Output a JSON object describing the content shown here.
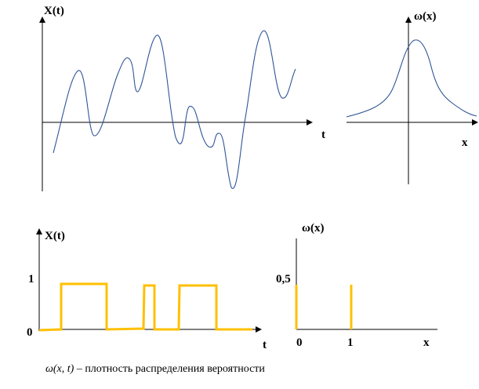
{
  "colors": {
    "axis": "#000000",
    "process_curve": "#2f5597",
    "binary_signal": "#ffc000"
  },
  "top_left": {
    "y_label": "X(t)",
    "x_label": "t"
  },
  "top_right": {
    "y_label": "ω(x)",
    "x_label": "x"
  },
  "bottom_left": {
    "y_label": "X(t)",
    "x_label": "t",
    "tick_1": "1",
    "tick_0": "0"
  },
  "bottom_right": {
    "y_label": "ω(x)",
    "x_label": "x",
    "tick_half": "0,5",
    "tick_0": "0",
    "tick_1": "1"
  },
  "caption": {
    "symbol": "ω(x, t)",
    "text": " – плотность распределения вероятности"
  }
}
